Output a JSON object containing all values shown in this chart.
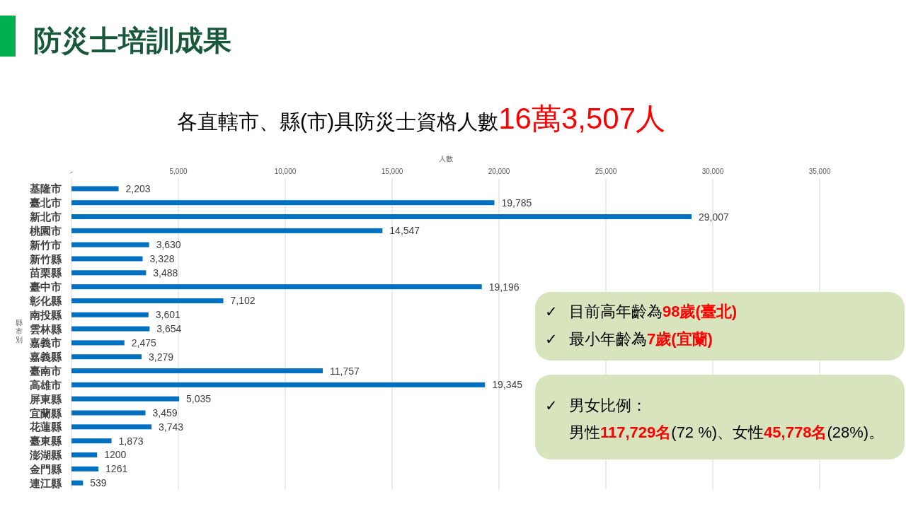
{
  "chart_data": {
    "type": "bar",
    "orientation": "horizontal",
    "title": "防災士培訓成果",
    "subtitle": "各直轄市、縣(市)具防災士資格人數16萬3,507人",
    "xlabel": "人數",
    "ylabel": "縣市別",
    "categories": [
      "基隆市",
      "臺北市",
      "新北市",
      "桃園市",
      "新竹市",
      "新竹縣",
      "苗栗縣",
      "臺中市",
      "彰化縣",
      "南投縣",
      "雲林縣",
      "嘉義市",
      "嘉義縣",
      "臺南市",
      "高雄市",
      "屏東縣",
      "宜蘭縣",
      "花蓮縣",
      "臺東縣",
      "澎湖縣",
      "金門縣",
      "連江縣"
    ],
    "values": [
      2203,
      19785,
      29007,
      14547,
      3630,
      3328,
      3488,
      19196,
      7102,
      3601,
      3654,
      2475,
      3279,
      11757,
      19345,
      5035,
      3459,
      3743,
      1873,
      1200,
      1261,
      539
    ],
    "value_labels": [
      "2,203",
      "19,785",
      "29,007",
      "14,547",
      "3,630",
      "3,328",
      "3,488",
      "19,196",
      "7,102",
      "3,601",
      "3,654",
      "2,475",
      "3,279",
      "11,757",
      "19,345",
      "5,035",
      "3,459",
      "3,743",
      "1,873",
      "1200",
      "1261",
      "539"
    ],
    "color": "#0070c0",
    "xlim": [
      0,
      35000
    ],
    "xticks": [
      {
        "value": 0,
        "label": "-"
      },
      {
        "value": 5000,
        "label": "5,000"
      },
      {
        "value": 10000,
        "label": "10,000"
      },
      {
        "value": 15000,
        "label": "15,000"
      },
      {
        "value": 20000,
        "label": "20,000"
      },
      {
        "value": 25000,
        "label": "25,000"
      },
      {
        "value": 30000,
        "label": "30,000"
      },
      {
        "value": 35000,
        "label": "35,000"
      }
    ],
    "grid": "x",
    "annotations": [
      "✓ 目前高年齡為98歲(臺北)",
      "✓ 最小年齡為7歲(宜蘭)",
      "✓ 男女比例：",
      "男性117,729名(72 %)、女性45,778名(28%)。"
    ]
  }
}
